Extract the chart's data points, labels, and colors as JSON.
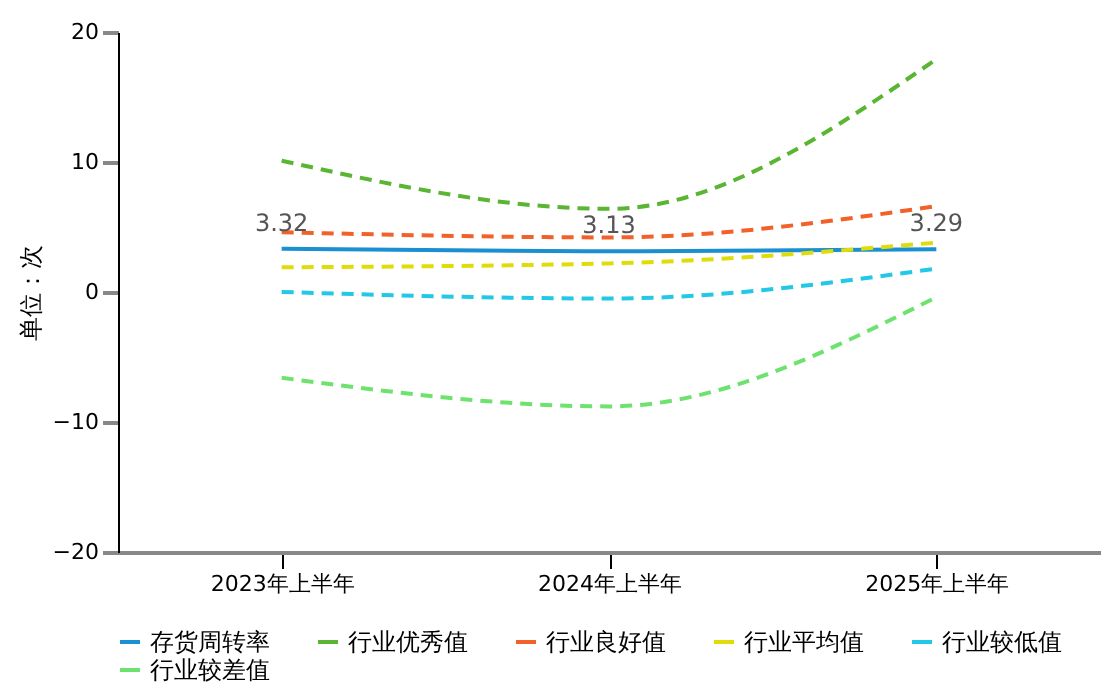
{
  "chart_data": {
    "type": "line",
    "ylabel": "单位：次",
    "categories": [
      "2023年上半年",
      "2024年上半年",
      "2025年上半年"
    ],
    "ylim": [
      -20,
      20
    ],
    "yticks": [
      -20,
      -10,
      0,
      10,
      20
    ],
    "grid": false,
    "legend": "bottom",
    "series": [
      {
        "name": "存货周转率",
        "color": "#1a8fd1",
        "values": [
          3.32,
          3.13,
          3.29
        ],
        "line_style": "solid",
        "value_labels": [
          "3.32",
          "3.13",
          "3.29"
        ]
      },
      {
        "name": "行业优秀值",
        "color": "#5ab532",
        "values": [
          10.1,
          6.4,
          17.9
        ],
        "line_style": "dashed"
      },
      {
        "name": "行业良好值",
        "color": "#f2612a",
        "values": [
          4.6,
          4.2,
          6.6
        ],
        "line_style": "dashed"
      },
      {
        "name": "行业平均值",
        "color": "#e0dc0a",
        "values": [
          1.9,
          2.2,
          3.8
        ],
        "line_style": "dashed"
      },
      {
        "name": "行业较低值",
        "color": "#22c8e5",
        "values": [
          0.0,
          -0.5,
          1.8
        ],
        "line_style": "dashed"
      },
      {
        "name": "行业较差值",
        "color": "#6ee26e",
        "values": [
          -6.6,
          -8.8,
          -0.4
        ],
        "line_style": "dashed"
      }
    ]
  }
}
